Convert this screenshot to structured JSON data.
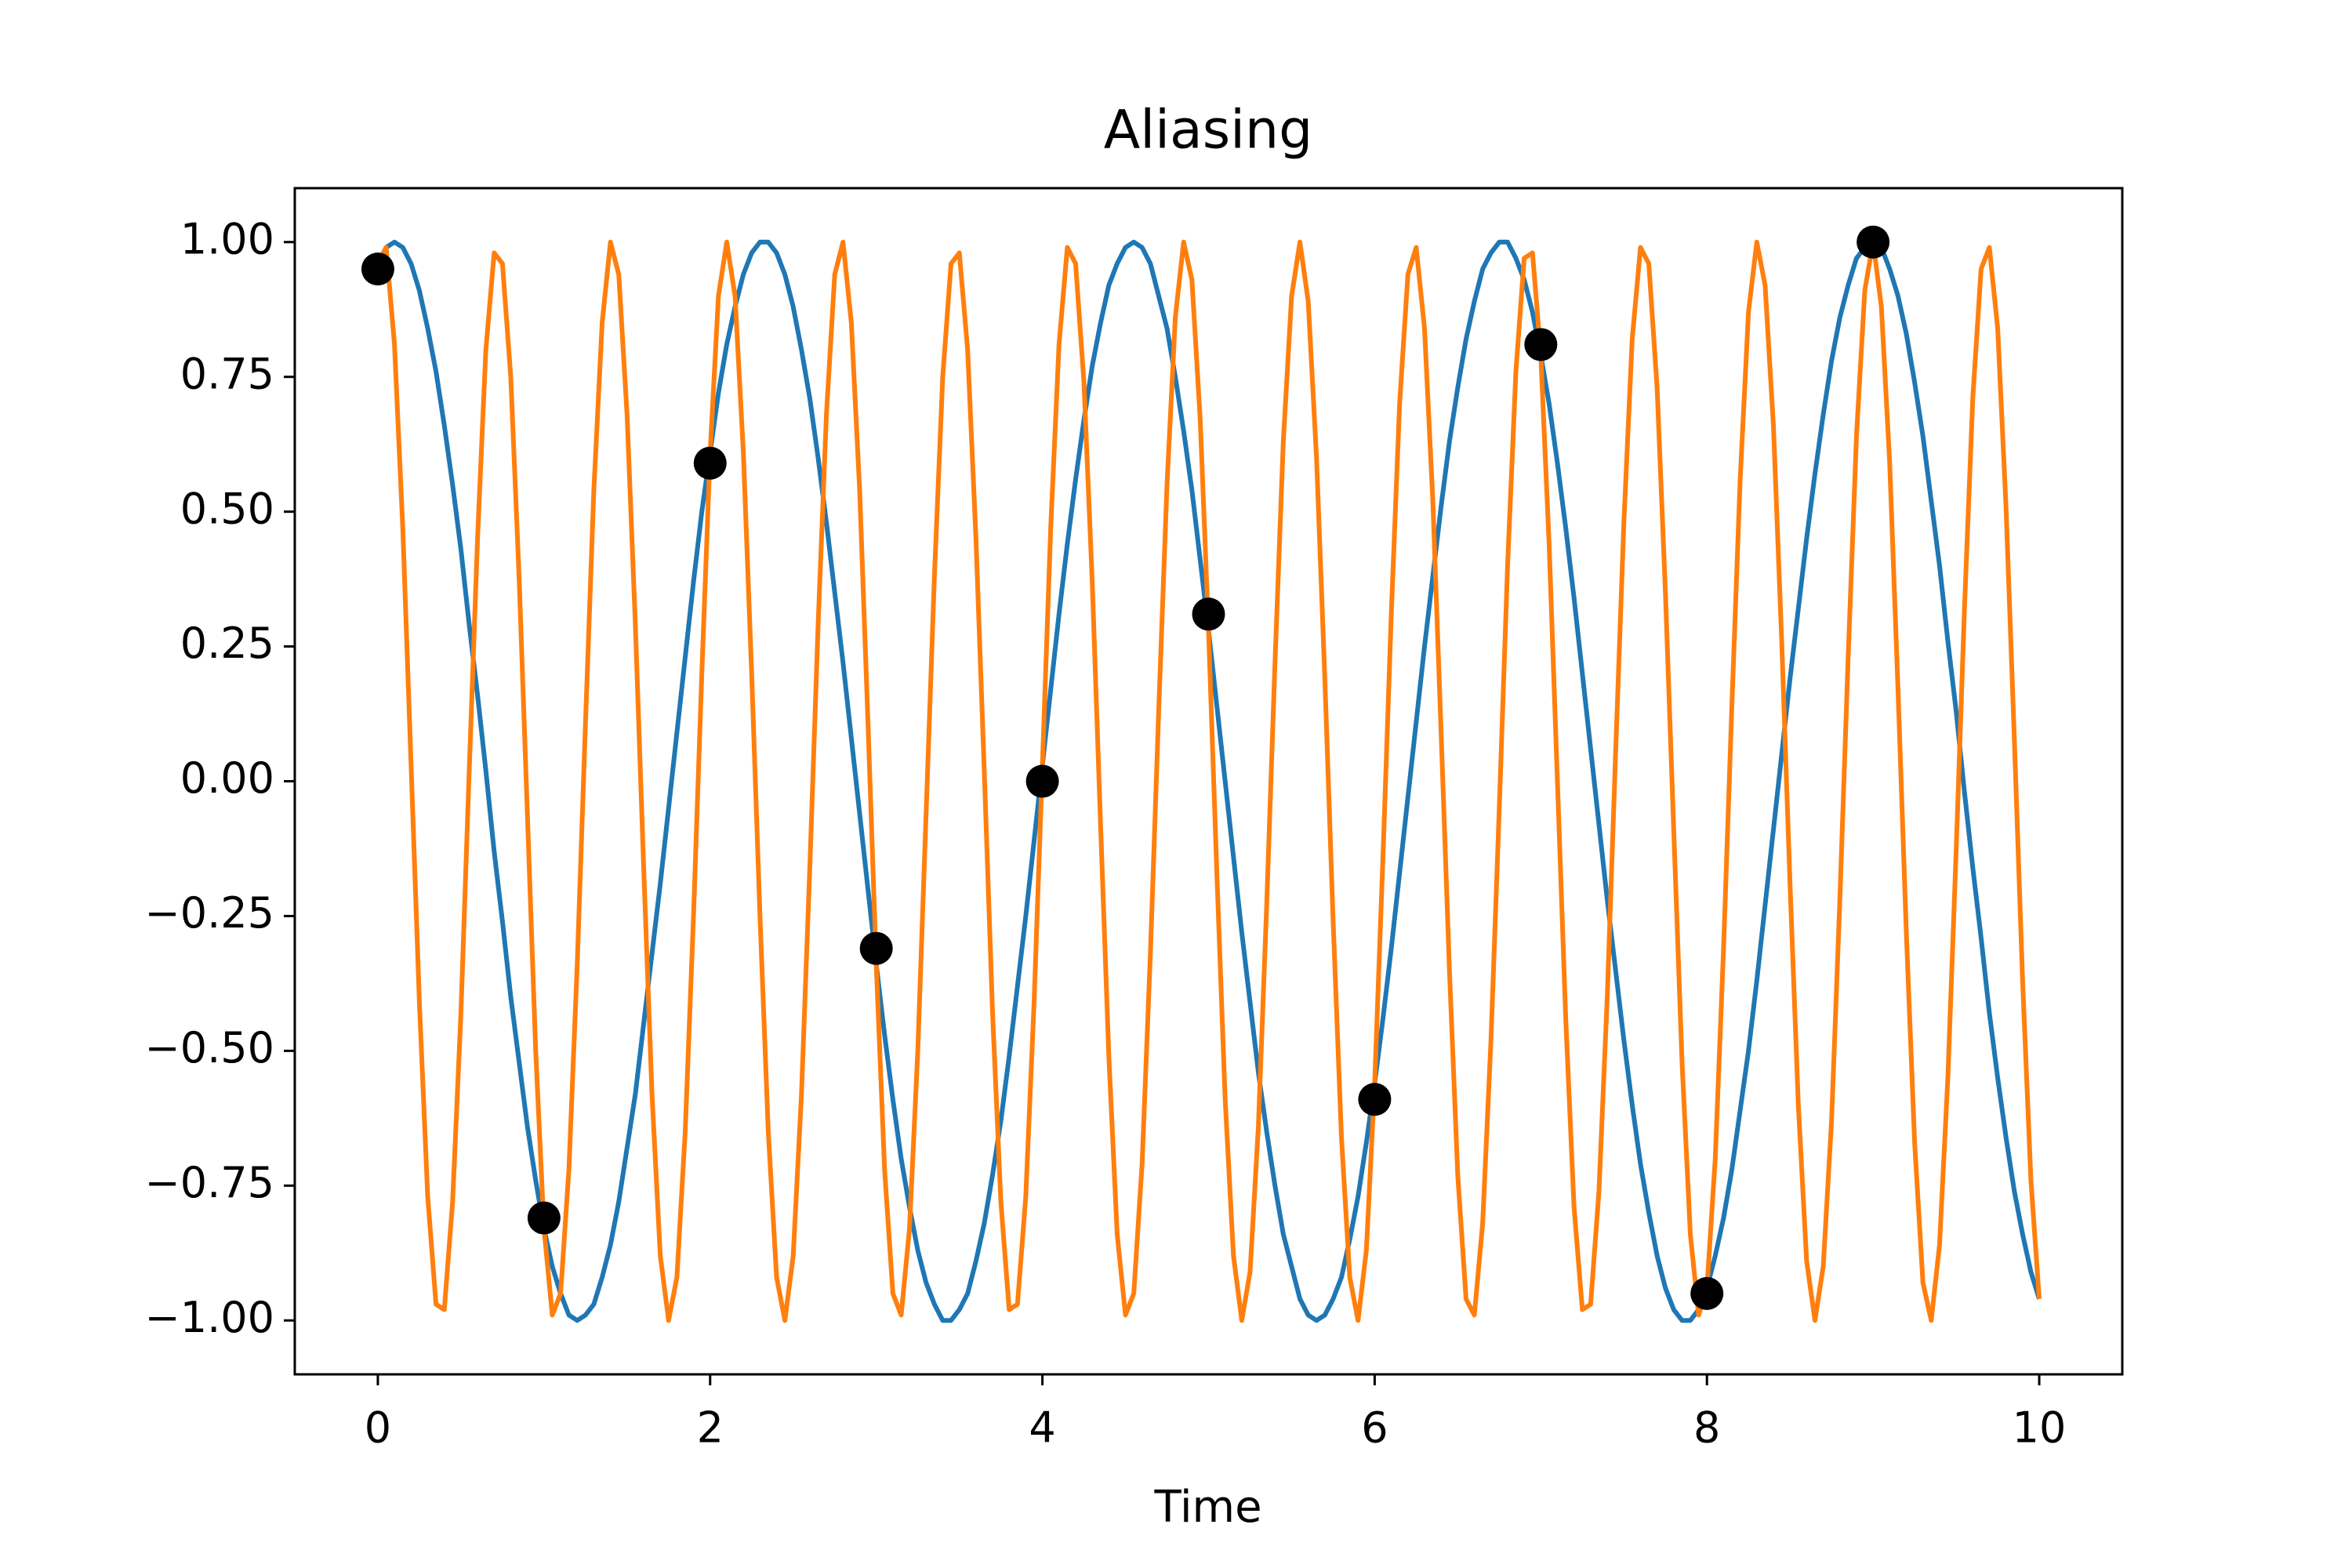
{
  "chart_data": {
    "type": "line",
    "title": "Aliasing",
    "x_label": "Time",
    "x": [
      0,
      0.05,
      0.1,
      0.15,
      0.2,
      0.25,
      0.3,
      0.35,
      0.4,
      0.45,
      0.5,
      0.55,
      0.6,
      0.65,
      0.7,
      0.75,
      0.8,
      0.85,
      0.9,
      0.95,
      1,
      1.05,
      1.1,
      1.15,
      1.2,
      1.25,
      1.3,
      1.35,
      1.4,
      1.45,
      1.5,
      1.55,
      1.6,
      1.65,
      1.7,
      1.75,
      1.8,
      1.85,
      1.9,
      1.95,
      2,
      2.05,
      2.1,
      2.15,
      2.2,
      2.25,
      2.3,
      2.35,
      2.4,
      2.45,
      2.5,
      2.55,
      2.6,
      2.65,
      2.7,
      2.75,
      2.8,
      2.85,
      2.9,
      2.95,
      3,
      3.05,
      3.1,
      3.15,
      3.2,
      3.25,
      3.3,
      3.35,
      3.4,
      3.45,
      3.5,
      3.55,
      3.6,
      3.65,
      3.7,
      3.75,
      3.8,
      3.85,
      3.9,
      3.95,
      4,
      4.05,
      4.1,
      4.15,
      4.2,
      4.25,
      4.3,
      4.35,
      4.4,
      4.45,
      4.5,
      4.55,
      4.6,
      4.65,
      4.7,
      4.75,
      4.8,
      4.85,
      4.9,
      4.95,
      5,
      5.05,
      5.1,
      5.15,
      5.2,
      5.25,
      5.3,
      5.35,
      5.4,
      5.45,
      5.5,
      5.55,
      5.6,
      5.65,
      5.7,
      5.75,
      5.8,
      5.85,
      5.9,
      5.95,
      6,
      6.05,
      6.1,
      6.15,
      6.2,
      6.25,
      6.3,
      6.35,
      6.4,
      6.45,
      6.5,
      6.55,
      6.6,
      6.65,
      6.7,
      6.75,
      6.8,
      6.85,
      6.9,
      6.95,
      7,
      7.05,
      7.1,
      7.15,
      7.2,
      7.25,
      7.3,
      7.35,
      7.4,
      7.45,
      7.5,
      7.55,
      7.6,
      7.65,
      7.7,
      7.75,
      7.8,
      7.85,
      7.9,
      7.95,
      8,
      8.05,
      8.1,
      8.15,
      8.2,
      8.25,
      8.3,
      8.35,
      8.4,
      8.45,
      8.5,
      8.55,
      8.6,
      8.65,
      8.7,
      8.75,
      8.8,
      8.85,
      8.9,
      8.95,
      9,
      9.05,
      9.1,
      9.15,
      9.2,
      9.25,
      9.3,
      9.35,
      9.4,
      9.45,
      9.5,
      9.55,
      9.6,
      9.65,
      9.7,
      9.75,
      9.8,
      9.85,
      9.9,
      9.95,
      10
    ],
    "series": [
      {
        "color": "#1f77b4",
        "values": [
          0.96,
          0.99,
          1,
          0.99,
          0.96,
          0.91,
          0.84,
          0.76,
          0.66,
          0.55,
          0.43,
          0.29,
          0.16,
          0.02,
          -0.13,
          -0.26,
          -0.4,
          -0.52,
          -0.64,
          -0.74,
          -0.83,
          -0.9,
          -0.95,
          -0.99,
          -1,
          -0.99,
          -0.97,
          -0.92,
          -0.86,
          -0.78,
          -0.68,
          -0.58,
          -0.45,
          -0.32,
          -0.19,
          -0.05,
          0.09,
          0.23,
          0.37,
          0.5,
          0.61,
          0.72,
          0.81,
          0.88,
          0.94,
          0.98,
          1,
          1,
          0.98,
          0.94,
          0.88,
          0.8,
          0.71,
          0.6,
          0.48,
          0.35,
          0.22,
          0.08,
          -0.06,
          -0.2,
          -0.34,
          -0.47,
          -0.59,
          -0.7,
          -0.79,
          -0.87,
          -0.93,
          -0.97,
          -1,
          -1,
          -0.98,
          -0.95,
          -0.89,
          -0.82,
          -0.73,
          -0.63,
          -0.51,
          -0.38,
          -0.25,
          -0.11,
          0.03,
          0.17,
          0.31,
          0.44,
          0.56,
          0.67,
          0.77,
          0.85,
          0.92,
          0.96,
          0.99,
          1,
          0.99,
          0.96,
          0.9,
          0.84,
          0.75,
          0.65,
          0.54,
          0.41,
          0.28,
          0.14,
          0,
          -0.14,
          -0.28,
          -0.41,
          -0.54,
          -0.65,
          -0.75,
          -0.84,
          -0.9,
          -0.96,
          -0.99,
          -1,
          -0.99,
          -0.96,
          -0.92,
          -0.85,
          -0.77,
          -0.67,
          -0.56,
          -0.44,
          -0.31,
          -0.17,
          -0.03,
          0.11,
          0.25,
          0.38,
          0.51,
          0.63,
          0.73,
          0.82,
          0.89,
          0.95,
          0.98,
          1,
          1,
          0.97,
          0.93,
          0.87,
          0.79,
          0.7,
          0.59,
          0.47,
          0.34,
          0.2,
          0.06,
          -0.08,
          -0.22,
          -0.35,
          -0.48,
          -0.6,
          -0.71,
          -0.8,
          -0.88,
          -0.94,
          -0.98,
          -1,
          -1,
          -0.98,
          -0.94,
          -0.88,
          -0.81,
          -0.72,
          -0.61,
          -0.5,
          -0.37,
          -0.23,
          -0.09,
          0.05,
          0.19,
          0.32,
          0.45,
          0.57,
          0.68,
          0.78,
          0.86,
          0.92,
          0.97,
          0.99,
          1,
          0.99,
          0.95,
          0.9,
          0.83,
          0.74,
          0.64,
          0.52,
          0.4,
          0.26,
          0.13,
          -0.02,
          -0.16,
          -0.29,
          -0.43,
          -0.55,
          -0.66,
          -0.76,
          -0.84,
          -0.91,
          -0.96
        ]
      },
      {
        "color": "#ff7f0e",
        "values": [
          0.96,
          0.99,
          0.81,
          0.47,
          0.03,
          -0.41,
          -0.77,
          -0.97,
          -0.98,
          -0.78,
          -0.43,
          0.02,
          0.45,
          0.8,
          0.98,
          0.96,
          0.75,
          0.38,
          -0.06,
          -0.5,
          -0.83,
          -0.99,
          -0.95,
          -0.72,
          -0.34,
          0.11,
          0.54,
          0.85,
          1,
          0.94,
          0.68,
          0.29,
          -0.16,
          -0.58,
          -0.88,
          -1,
          -0.92,
          -0.65,
          -0.25,
          0.2,
          0.61,
          0.9,
          1,
          0.9,
          0.61,
          0.2,
          -0.25,
          -0.65,
          -0.92,
          -1,
          -0.88,
          -0.58,
          -0.16,
          0.29,
          0.68,
          0.94,
          1,
          0.85,
          0.54,
          0.11,
          -0.34,
          -0.72,
          -0.95,
          -0.99,
          -0.83,
          -0.5,
          -0.06,
          0.38,
          0.75,
          0.96,
          0.98,
          0.8,
          0.45,
          0.02,
          -0.43,
          -0.78,
          -0.98,
          -0.97,
          -0.77,
          -0.41,
          0.03,
          0.47,
          0.81,
          0.99,
          0.96,
          0.74,
          0.37,
          -0.08,
          -0.51,
          -0.84,
          -0.99,
          -0.95,
          -0.71,
          -0.32,
          0.13,
          0.55,
          0.86,
          1,
          0.93,
          0.67,
          0.28,
          -0.17,
          -0.59,
          -0.88,
          -1,
          -0.91,
          -0.64,
          -0.23,
          0.22,
          0.63,
          0.9,
          1,
          0.89,
          0.6,
          0.19,
          -0.26,
          -0.66,
          -0.92,
          -1,
          -0.87,
          -0.56,
          -0.14,
          0.31,
          0.7,
          0.94,
          0.99,
          0.84,
          0.52,
          0.09,
          -0.35,
          -0.73,
          -0.96,
          -0.99,
          -0.82,
          -0.48,
          -0.05,
          0.4,
          0.76,
          0.97,
          0.98,
          0.79,
          0.44,
          0,
          -0.44,
          -0.79,
          -0.98,
          -0.97,
          -0.76,
          -0.4,
          0.05,
          0.48,
          0.82,
          0.99,
          0.96,
          0.73,
          0.35,
          -0.09,
          -0.52,
          -0.84,
          -0.99,
          -0.94,
          -0.7,
          -0.31,
          0.14,
          0.56,
          0.87,
          1,
          0.92,
          0.66,
          0.26,
          -0.19,
          -0.6,
          -0.89,
          -1,
          -0.9,
          -0.63,
          -0.22,
          0.23,
          0.64,
          0.91,
          1,
          0.88,
          0.59,
          0.17,
          -0.28,
          -0.67,
          -0.93,
          -1,
          -0.86,
          -0.55,
          -0.13,
          0.32,
          0.71,
          0.95,
          0.99,
          0.84,
          0.51,
          0.08,
          -0.37,
          -0.74,
          -0.96
        ]
      }
    ],
    "samples": {
      "color": "#000000",
      "x": [
        0,
        1,
        2,
        3,
        4,
        5,
        6,
        7,
        8,
        9
      ],
      "values": [
        0.95,
        -0.81,
        0.59,
        -0.31,
        0,
        0.31,
        -0.59,
        0.81,
        -0.95,
        1
      ]
    },
    "xlim": [
      -0.5,
      10.5
    ],
    "xticks": [
      0,
      2,
      4,
      6,
      8,
      10
    ],
    "ylim": [
      -1.1,
      1.1
    ],
    "yticks": [
      {
        "value": -1,
        "label": "−1.00"
      },
      {
        "value": -0.75,
        "label": "−0.75"
      },
      {
        "value": -0.5,
        "label": "−0.50"
      },
      {
        "value": -0.25,
        "label": "−0.25"
      },
      {
        "value": 0,
        "label": "0.00"
      },
      {
        "value": 0.25,
        "label": "0.25"
      },
      {
        "value": 0.5,
        "label": "0.50"
      },
      {
        "value": 0.75,
        "label": "0.75"
      },
      {
        "value": 1,
        "label": "1.00"
      }
    ],
    "grid": false
  }
}
